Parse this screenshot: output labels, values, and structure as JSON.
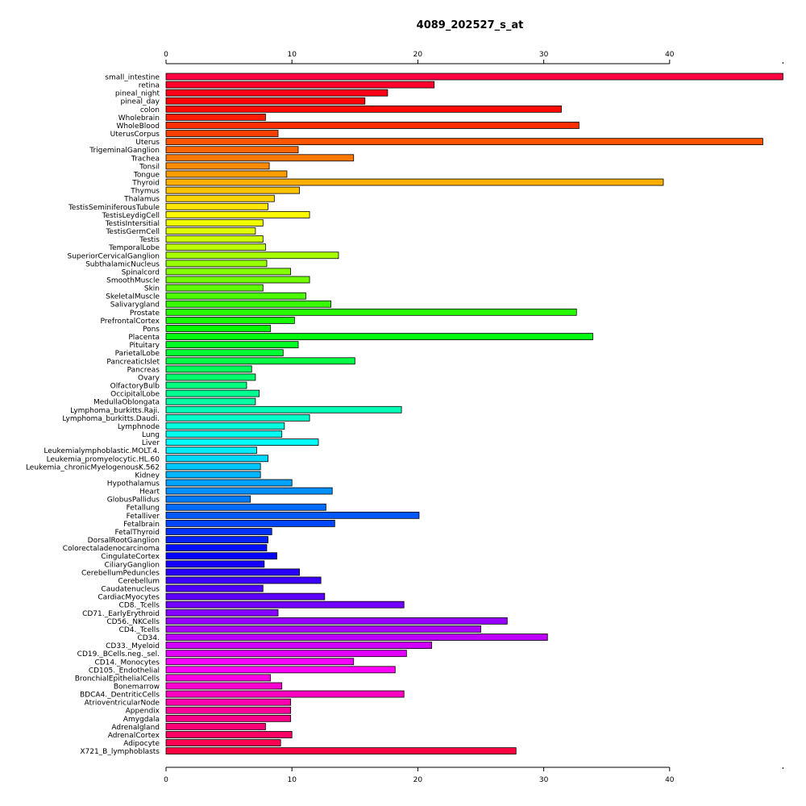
{
  "chart_data": {
    "type": "bar",
    "orientation": "horizontal",
    "title": "4089_202527_s_at",
    "xlabel": "",
    "ylabel": "",
    "xlim": [
      0,
      49
    ],
    "xticks": [
      0,
      10,
      20,
      30,
      40
    ],
    "axis_position": "top-and-bottom",
    "grid": false,
    "legend": "none",
    "color_scheme": "rainbow (red → magenta → blue → cyan → green → yellow → orange → red)",
    "categories": [
      "small_intestine",
      "retina",
      "pineal_night",
      "pineal_day",
      "colon",
      "Wholebrain",
      "WholeBlood",
      "UterusCorpus",
      "Uterus",
      "TrigeminalGanglion",
      "Trachea",
      "Tonsil",
      "Tongue",
      "Thyroid",
      "Thymus",
      "Thalamus",
      "TestisSeminiferousTubule",
      "TestisLeydigCell",
      "TestisIntersitial",
      "TestisGermCell",
      "Testis",
      "TemporalLobe",
      "SuperiorCervicalGanglion",
      "SubthalamicNucleus",
      "Spinalcord",
      "SmoothMuscle",
      "Skin",
      "SkeletalMuscle",
      "Salivarygland",
      "Prostate",
      "PrefrontalCortex",
      "Pons",
      "Placenta",
      "Pituitary",
      "ParietalLobe",
      "PancreaticIslet",
      "Pancreas",
      "Ovary",
      "OlfactoryBulb",
      "OccipitalLobe",
      "MedullaOblongata",
      "Lymphoma_burkitts.Raji.",
      "Lymphoma_burkitts.Daudi.",
      "Lymphnode",
      "Lung",
      "Liver",
      "Leukemialymphoblastic.MOLT.4.",
      "Leukemia_promyelocytic.HL.60",
      "Leukemia_chronicMyelogenousK.562",
      "Kidney",
      "Hypothalamus",
      "Heart",
      "GlobusPallidus",
      "Fetallung",
      "Fetalliver",
      "Fetalbrain",
      "FetalThyroid",
      "DorsalRootGanglion",
      "Colorectaladenocarcinoma",
      "CingulateCortex",
      "CiliaryGanglion",
      "CerebellumPeduncles",
      "Cerebellum",
      "Caudatenucleus",
      "CardiacMyocytes",
      "CD8._Tcells",
      "CD71._EarlyErythroid",
      "CD56._NKCells",
      "CD4._Tcells",
      "CD34.",
      "CD33._Myeloid",
      "CD19._BCells.neg._sel.",
      "CD14._Monocytes",
      "CD105._Endothelial",
      "BronchialEpithelialCells",
      "Bonemarrow",
      "BDCA4._DentriticCells",
      "AtrioventricularNode",
      "Appendix",
      "Amygdala",
      "Adrenalgland",
      "AdrenalCortex",
      "Adipocyte",
      "X721_B_lymphoblasts"
    ],
    "values": [
      49.0,
      21.3,
      17.6,
      15.8,
      31.4,
      7.9,
      32.8,
      8.9,
      47.4,
      10.5,
      14.9,
      8.2,
      9.6,
      39.5,
      10.6,
      8.6,
      8.1,
      11.4,
      7.7,
      7.1,
      7.7,
      7.9,
      13.7,
      8.0,
      9.9,
      11.4,
      7.7,
      11.1,
      13.1,
      32.6,
      10.2,
      8.3,
      33.9,
      10.5,
      9.3,
      15.0,
      6.8,
      7.1,
      6.4,
      7.4,
      7.1,
      18.7,
      11.4,
      9.4,
      9.2,
      12.1,
      7.2,
      8.1,
      7.5,
      7.5,
      10.0,
      13.2,
      6.7,
      12.7,
      20.1,
      13.4,
      8.4,
      8.1,
      8.0,
      8.8,
      7.8,
      10.6,
      12.3,
      7.7,
      12.6,
      18.9,
      8.9,
      27.1,
      25.0,
      30.3,
      21.1,
      19.1,
      14.9,
      18.2,
      8.3,
      9.2,
      18.9,
      9.9,
      9.9,
      9.9,
      7.9,
      10.0,
      9.1,
      27.8
    ]
  }
}
